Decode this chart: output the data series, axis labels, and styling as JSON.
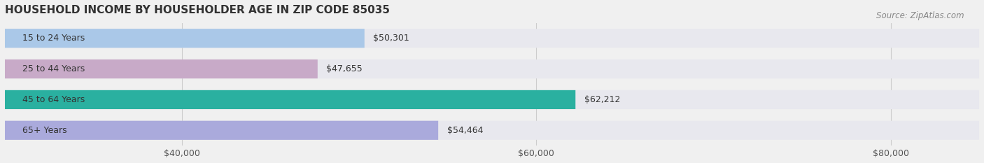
{
  "title": "HOUSEHOLD INCOME BY HOUSEHOLDER AGE IN ZIP CODE 85035",
  "source": "Source: ZipAtlas.com",
  "categories": [
    "15 to 24 Years",
    "25 to 44 Years",
    "45 to 64 Years",
    "65+ Years"
  ],
  "values": [
    50301,
    47655,
    62212,
    54464
  ],
  "bar_colors": [
    "#aac8e8",
    "#c8aac8",
    "#2ab0a0",
    "#aaaadc"
  ],
  "label_colors": [
    "#333333",
    "#333333",
    "#333333",
    "#333333"
  ],
  "xlim": [
    30000,
    85000
  ],
  "xticks": [
    40000,
    60000,
    80000
  ],
  "xticklabels": [
    "$40,000",
    "$60,000",
    "$80,000"
  ],
  "bar_height": 0.62,
  "background_color": "#f0f0f0",
  "bar_background_color": "#e8e8ee",
  "title_fontsize": 11,
  "source_fontsize": 8.5,
  "label_fontsize": 9,
  "tick_fontsize": 9,
  "category_fontsize": 9
}
